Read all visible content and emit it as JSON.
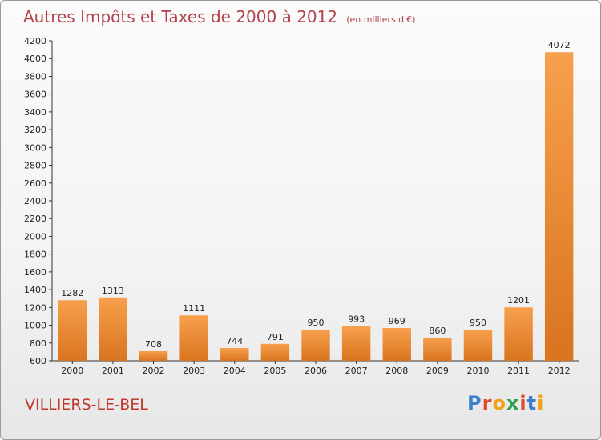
{
  "page": {
    "title": "Autres Impôts et Taxes de 2000 à 2012",
    "subtitle": "(en milliers d'€)",
    "commune": "VILLIERS-LE-BEL",
    "logo": {
      "letters": [
        "P",
        "r",
        "o",
        "x",
        "i",
        "t",
        "i"
      ],
      "colors": [
        "#3a7fd0",
        "#e04a2f",
        "#f0a21b",
        "#2fa04a",
        "#e04a2f",
        "#3a7fd0",
        "#f0a21b"
      ]
    }
  },
  "chart_data": {
    "type": "bar",
    "title": "Autres Impôts et Taxes de 2000 à 2012",
    "subtitle": "(en milliers d'€)",
    "categories": [
      "2000",
      "2001",
      "2002",
      "2003",
      "2004",
      "2005",
      "2006",
      "2007",
      "2008",
      "2009",
      "2010",
      "2011",
      "2012"
    ],
    "values": [
      1282,
      1313,
      708,
      1111,
      744,
      791,
      950,
      993,
      969,
      860,
      950,
      1201,
      4072
    ],
    "ylim": [
      600,
      4200
    ],
    "yticks": [
      600,
      800,
      1000,
      1200,
      1400,
      1600,
      1800,
      2000,
      2200,
      2400,
      2600,
      2800,
      3000,
      3200,
      3400,
      3600,
      3800,
      4000,
      4200
    ],
    "grid": false,
    "bar_color_top": "#f7a04d",
    "bar_color_bottom": "#d9741f"
  }
}
